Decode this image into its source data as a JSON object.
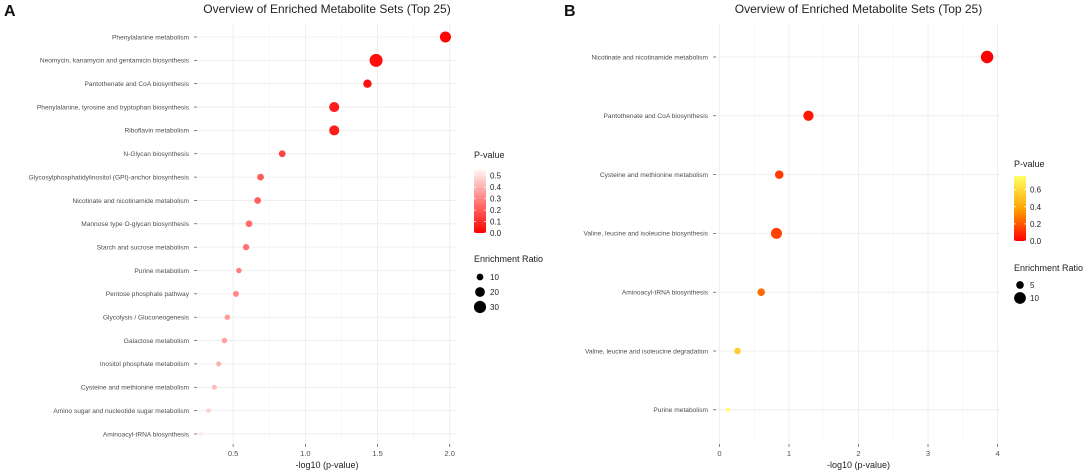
{
  "colors": {
    "panel_bg": "#ffffff",
    "grid_major": "#ebebeb",
    "grid_minor": "#f5f5f5",
    "low_p": "#ff0000",
    "high_p_A": "#fff5f0",
    "high_p_B": "#ffff66",
    "mid_B": "#ffa500"
  },
  "chart_data": [
    {
      "panel": "A",
      "type": "scatter",
      "title": "Overview of Enriched Metabolite Sets (Top 25)",
      "xlabel": "-log10 (p-value)",
      "ylabel": "",
      "xlim": [
        0.25,
        2.05
      ],
      "xticks": [
        "0.5",
        "1.0",
        "1.5",
        "2.0"
      ],
      "xtick_values": [
        0.5,
        1.0,
        1.5,
        2.0
      ],
      "categories": [
        "Phenylalanine metabolism",
        "Neomycin, kanamycin and gentamicin biosynthesis",
        "Pantothenate and CoA biosynthesis",
        "Phenylalanine, tyrosine and tryptophan biosynthesis",
        "Riboflavin metabolism",
        "N-Glycan biosynthesis",
        "Glycosylphosphatidylinositol (GPI)-anchor biosynthesis",
        "Nicotinate and nicotinamide metabolism",
        "Mannose type O-glycan biosynthesis",
        "Starch and sucrose metabolism",
        "Purine metabolism",
        "Pentose phosphate pathway",
        "Glycolysis / Gluconeogenesis",
        "Galactose metabolism",
        "Inositol phosphate metabolism",
        "Cysteine and methionine metabolism",
        "Amino sugar and nucleotide sugar metabolism",
        "Aminoacyl-tRNA biosynthesis"
      ],
      "neg_log10_p": [
        1.97,
        1.49,
        1.43,
        1.2,
        1.2,
        0.84,
        0.69,
        0.67,
        0.61,
        0.59,
        0.54,
        0.52,
        0.46,
        0.44,
        0.4,
        0.37,
        0.33,
        0.28
      ],
      "p_value": [
        0.011,
        0.032,
        0.037,
        0.063,
        0.063,
        0.145,
        0.204,
        0.214,
        0.245,
        0.257,
        0.288,
        0.302,
        0.347,
        0.363,
        0.398,
        0.427,
        0.468,
        0.525
      ],
      "enrichment_ratio": [
        25,
        34,
        15,
        21,
        21,
        10,
        10,
        10,
        10,
        9,
        7,
        8,
        7,
        7,
        6,
        6,
        5,
        4
      ],
      "legend": {
        "color_title": "P-value",
        "color_labels": [
          "0.5",
          "0.4",
          "0.3",
          "0.2",
          "0.1",
          "0.0"
        ],
        "color_values": [
          0.5,
          0.4,
          0.3,
          0.2,
          0.1,
          0.0
        ],
        "color_range": [
          0,
          0.55
        ],
        "size_title": "Enrichment Ratio",
        "size_labels": [
          "10",
          "20",
          "30"
        ],
        "size_values": [
          10,
          20,
          30
        ]
      },
      "panel_letter": "A"
    },
    {
      "panel": "B",
      "type": "scatter",
      "title": "Overview of Enriched Metabolite Sets (Top 25)",
      "xlabel": "-log10 (p-value)",
      "ylabel": "",
      "xlim": [
        -0.05,
        4.05
      ],
      "xticks": [
        "0",
        "1",
        "2",
        "3",
        "4"
      ],
      "xtick_values": [
        0,
        1,
        2,
        3,
        4
      ],
      "categories": [
        "Nicotinate and nicotinamide metabolism",
        "Pantothenate and CoA biosynthesis",
        "Cysteine and methionine metabolism",
        "Valine, leucine and isoleucine biosynthesis",
        "Aminoacyl-tRNA biosynthesis",
        "Valine, leucine and isoleucine degradation",
        "Purine metabolism"
      ],
      "neg_log10_p": [
        3.85,
        1.28,
        0.86,
        0.82,
        0.6,
        0.26,
        0.12
      ],
      "p_value": [
        0.0001,
        0.052,
        0.138,
        0.151,
        0.251,
        0.55,
        0.76
      ],
      "enrichment_ratio": [
        11,
        8,
        6,
        9,
        5,
        4,
        2
      ],
      "legend": {
        "color_title": "P-value",
        "color_labels": [
          "0.6",
          "0.4",
          "0.2",
          "0.0"
        ],
        "color_values": [
          0.6,
          0.4,
          0.2,
          0.0
        ],
        "color_range": [
          0,
          0.76
        ],
        "size_title": "Enrichment Ratio",
        "size_labels": [
          "5",
          "10"
        ],
        "size_values": [
          5,
          10
        ]
      },
      "panel_letter": "B"
    }
  ]
}
